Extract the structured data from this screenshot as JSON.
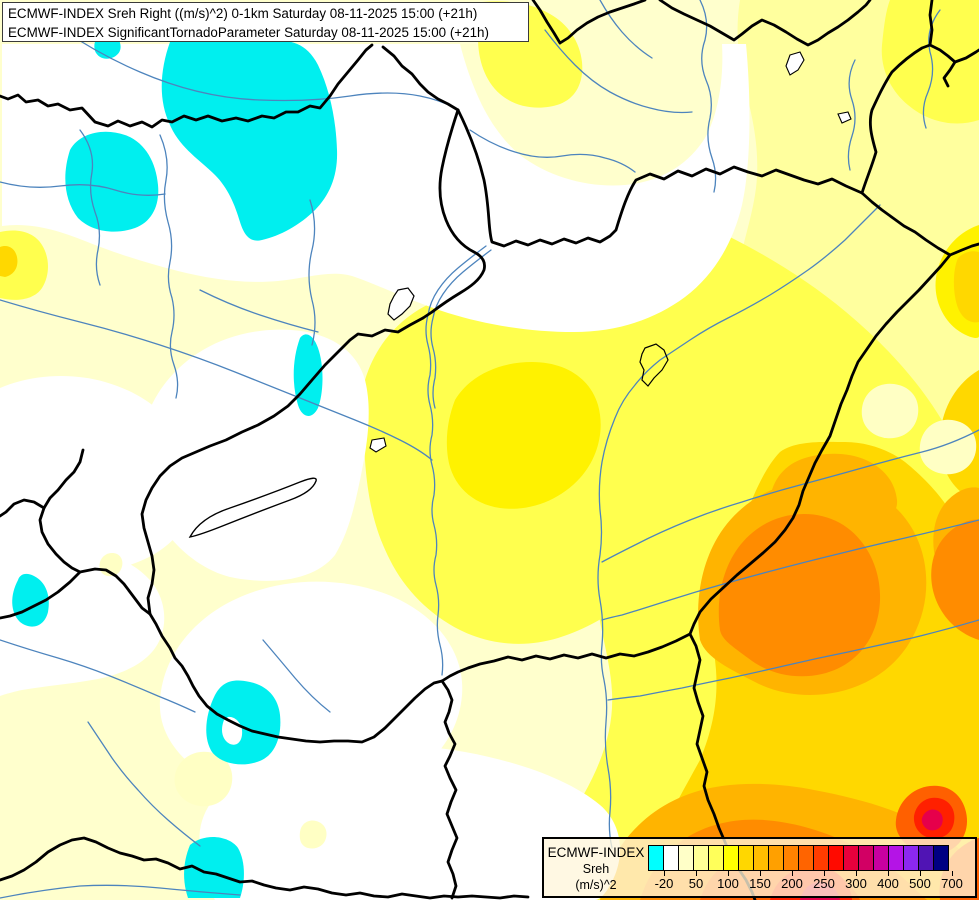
{
  "header": {
    "line1": "ECMWF-INDEX Sreh Right ((m/s)^2) 0-1km Saturday 08-11-2025 15:00 (+21h)",
    "line2": "ECMWF-INDEX SignificantTornadoParameter Saturday 08-11-2025 15:00 (+21h)"
  },
  "legend": {
    "title": "ECMWF-INDEX",
    "parameter": "Sreh",
    "unit": "(m/s)^2",
    "tick_labels": [
      "-20",
      "50",
      "100",
      "150",
      "200",
      "250",
      "300",
      "400",
      "500",
      "700"
    ],
    "colors": [
      "#00FFFF",
      "#FFFFFF",
      "#FFFFC8",
      "#FFFF96",
      "#FFFF5A",
      "#FFFF00",
      "#FFD700",
      "#FFBE00",
      "#FFA000",
      "#FF8200",
      "#FF6400",
      "#FF3C00",
      "#FF0A00",
      "#E8003C",
      "#D20064",
      "#C800A0",
      "#B414E6",
      "#8C28F0",
      "#5014B4",
      "#000082"
    ]
  },
  "map_colors": {
    "base_cream": "#FFFFCD",
    "light_yellow": "#FFFF9E",
    "yellow": "#FFFF4E",
    "bright_yellow": "#FFF200",
    "gold": "#FFD800",
    "orange": "#FFB400",
    "deep_orange": "#FF8C00",
    "hot_orange": "#FF6000",
    "red": "#FF2000",
    "crimson": "#E6004B",
    "negative_cyan": "#00EFEF",
    "border_black": "#000000",
    "river_blue": "#4D84BD"
  }
}
